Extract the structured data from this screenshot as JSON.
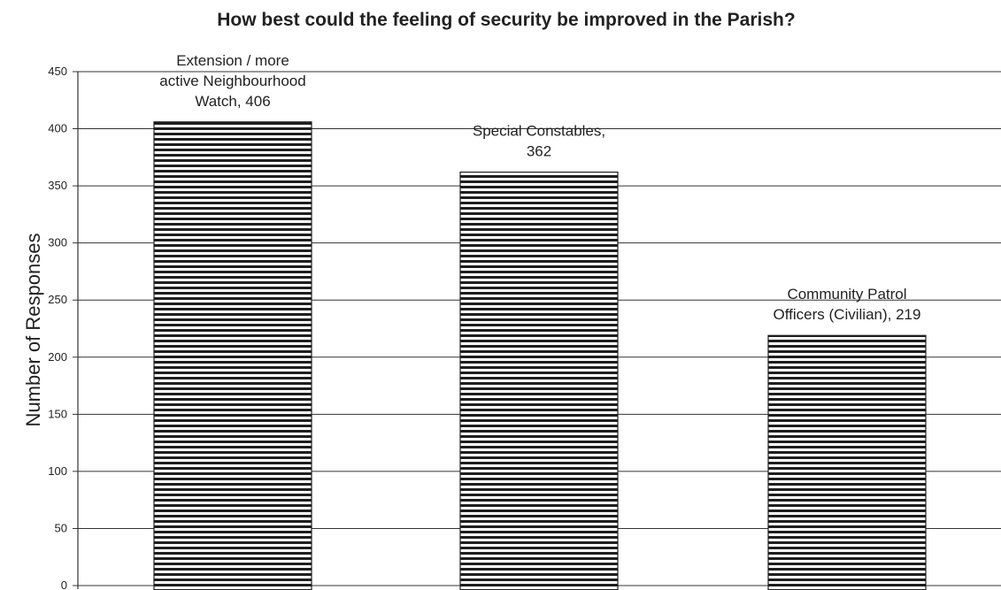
{
  "chart_data": {
    "type": "bar",
    "title": "How best could the feeling of security be improved in the Parish?",
    "xlabel": "",
    "ylabel": "Number of Responses",
    "ylim": [
      0,
      450
    ],
    "ytick_step": 50,
    "yticks": [
      "0",
      "50",
      "100",
      "150",
      "200",
      "250",
      "300",
      "350",
      "400",
      "450"
    ],
    "grid": true,
    "bar_pattern": "horizontal-stripes",
    "categories": [
      "Extension / more active Neighbourhood Watch",
      "Special Constables",
      "Community Patrol Officers (Civilian)"
    ],
    "values": [
      406,
      362,
      219
    ],
    "data_labels": [
      [
        "Extension / more",
        "active Neighbourhood",
        "Watch, 406"
      ],
      [
        "Special Constables,",
        "362"
      ],
      [
        "Community Patrol",
        "Officers (Civilian), 219"
      ]
    ]
  }
}
